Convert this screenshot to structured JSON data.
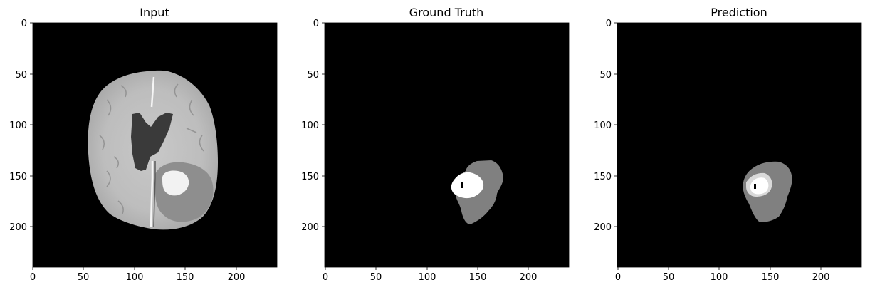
{
  "chart_data": [
    {
      "type": "heatmap",
      "title": "Input",
      "content": "axial brain MRI slice (grayscale)",
      "xlim": [
        0,
        240
      ],
      "ylim": [
        240,
        0
      ],
      "xticks": [
        "0",
        "50",
        "100",
        "150",
        "200"
      ],
      "yticks": [
        "0",
        "50",
        "100",
        "150",
        "200"
      ],
      "colormap": "gray",
      "background_color": "#000000"
    },
    {
      "type": "heatmap",
      "title": "Ground Truth",
      "content": "segmentation mask",
      "xlim": [
        0,
        240
      ],
      "ylim": [
        240,
        0
      ],
      "xticks": [
        "0",
        "50",
        "100",
        "150",
        "200"
      ],
      "yticks": [
        "0",
        "50",
        "100",
        "150",
        "200"
      ],
      "colormap": "gray",
      "background_color": "#000000",
      "regions": [
        {
          "level": "outer",
          "color": "#808080",
          "x_range": [
            125,
            176
          ],
          "y_range": [
            136,
            198
          ]
        },
        {
          "level": "inner",
          "color": "#ffffff",
          "x_range": [
            124,
            150
          ],
          "y_range": [
            147,
            173
          ]
        }
      ]
    },
    {
      "type": "heatmap",
      "title": "Prediction",
      "content": "segmentation mask",
      "xlim": [
        0,
        240
      ],
      "ylim": [
        240,
        0
      ],
      "xticks": [
        "0",
        "50",
        "100",
        "150",
        "200"
      ],
      "yticks": [
        "0",
        "50",
        "100",
        "150",
        "200"
      ],
      "colormap": "gray",
      "background_color": "#000000",
      "regions": [
        {
          "level": "outer",
          "color": "#808080",
          "x_range": [
            124,
            173
          ],
          "y_range": [
            139,
            196
          ]
        },
        {
          "level": "inner",
          "color": "#ffffff",
          "x_range": [
            132,
            155
          ],
          "y_range": [
            152,
            171
          ]
        }
      ]
    }
  ]
}
